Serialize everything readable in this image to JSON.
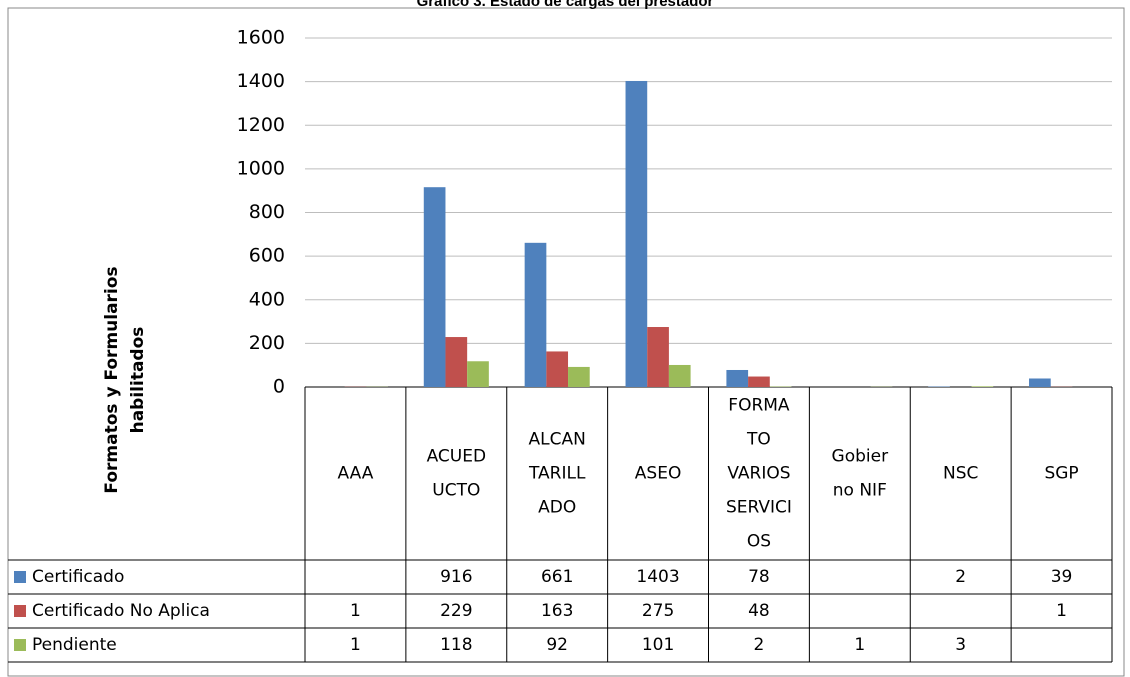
{
  "chart_data": {
    "type": "bar",
    "title": "Gráfico 3. Estado de cargas del prestador",
    "y_label": "Formatos y Formularios habilitados",
    "categories": [
      "AAA",
      "ACUED\nUCTO",
      "ALCAN\nTARILL\nADO",
      "ASEO",
      "FORMA\nTO\nVARIOS\nSERVICI\nOS",
      "Gobier\nno NIF",
      "NSC",
      "SGP"
    ],
    "series": [
      {
        "name": "Certificado",
        "color": "#4f81bd",
        "values": [
          null,
          916,
          661,
          1403,
          78,
          null,
          2,
          39
        ]
      },
      {
        "name": "Certificado No Aplica",
        "color": "#c0504d",
        "values": [
          1,
          229,
          163,
          275,
          48,
          null,
          null,
          1
        ]
      },
      {
        "name": "Pendiente",
        "color": "#9bbb59",
        "values": [
          1,
          118,
          92,
          101,
          2,
          1,
          3,
          null
        ]
      }
    ],
    "ylim": [
      0,
      1600
    ],
    "yticks": [
      0,
      200,
      400,
      600,
      800,
      1000,
      1200,
      1400,
      1600
    ],
    "grid": true
  }
}
